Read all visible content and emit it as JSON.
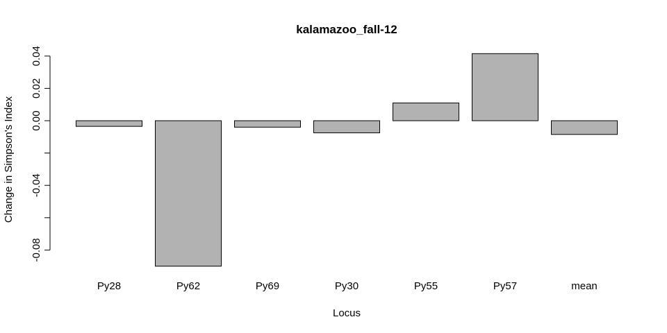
{
  "chart_data": {
    "type": "bar",
    "title": "kalamazoo_fall-12",
    "xlabel": "Locus",
    "ylabel": "Change in Simpson's Index",
    "categories": [
      "Py28",
      "Py62",
      "Py69",
      "Py30",
      "Py55",
      "Py57",
      "mean"
    ],
    "values": [
      -0.0035,
      -0.09,
      -0.004,
      -0.0075,
      0.011,
      0.0415,
      -0.0085
    ],
    "yticks": [
      -0.08,
      -0.04,
      0.0,
      0.02,
      0.04
    ],
    "ytick_labels": [
      "-0.08",
      "-0.04",
      "0.00",
      "0.02",
      "0.04"
    ],
    "yminor_ticks": [
      -0.06,
      -0.02
    ],
    "ylim": [
      -0.09,
      0.0415
    ],
    "bar_fill": "#b2b2b2",
    "bar_stroke": "#000000",
    "grid": false,
    "legend": "none"
  }
}
